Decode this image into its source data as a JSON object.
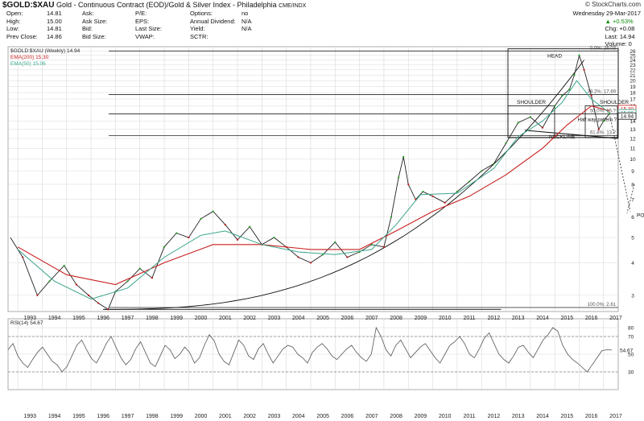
{
  "header": {
    "symbol": "$GOLD:$XAU",
    "description": "Gold - Continuous Contract (EOD)/Gold & Silver Index - Philadelphia",
    "exchange": "CME/INDX",
    "credit": "© StockCharts.com",
    "date": "Wednesday 29-Mar-2017",
    "change_pct": "▲ +0.53%",
    "chg": "Chg: +0.08",
    "last": "Last: 14.94",
    "volume": "Volume: 0"
  },
  "quote": {
    "col1": [
      "Open:",
      "High:",
      "Low:",
      "Prev Close:"
    ],
    "col1v": [
      "14.81",
      "15.00",
      "14.81",
      "14.86"
    ],
    "col2": [
      "Ask:",
      "Ask Size:",
      "Bid:",
      "Bid Size:"
    ],
    "col3": [
      "P/E:",
      "EPS:",
      "Last Size:",
      "VWAP:"
    ],
    "col4": [
      "Options:",
      "Annual Dividend:",
      "Yield:",
      "SCTR:"
    ],
    "col4v": [
      "no",
      "N/A",
      "N/A",
      ""
    ]
  },
  "legend": {
    "price": "$GOLD:$XAU (Weekly) 14.94",
    "ema200": "EMA(200) 15.30",
    "ema50": "EMA(50) 15.06",
    "rsi": "RSI(14) 54.67",
    "rsi_value": "54.67"
  },
  "colors": {
    "up": "#1a9a1a",
    "down": "#cc1111",
    "ema200": "#c81e1e",
    "ema50": "#3aa58c",
    "grid": "#d8d8d8",
    "rsi": "#555555"
  },
  "annotations": {
    "head": "HEAD",
    "shoulder_left": "SHOULDER",
    "shoulder_right": "SHOULDER",
    "neckline": "NECKLINE",
    "halfway": "Half way pattern ?",
    "po": "PO",
    "fib_0": "0.0%: 26.03",
    "fib_382": "38.2%: 17.69",
    "fib_50": "50.0%: 15.?",
    "fib_618": "61.8%: 13.?",
    "fib_100": "100.0%: 2.61",
    "price_flag_red": "15.30",
    "price_flag_green": "15.06",
    "price_flag_last": "14.94"
  },
  "chart_data": {
    "type": "line",
    "title": "$GOLD:$XAU Gold - Continuous Contract (EOD)/Gold & Silver Index - Philadelphia",
    "scale": "log",
    "x_ticks": [
      "1993",
      "1994",
      "1995",
      "1996",
      "1997",
      "1998",
      "1999",
      "2000",
      "2001",
      "2002",
      "2003",
      "2004",
      "2005",
      "2006",
      "2007",
      "2008",
      "2009",
      "2010",
      "2011",
      "2012",
      "2013",
      "2014",
      "2015",
      "2016",
      "2017"
    ],
    "y_ticks": [
      3,
      4,
      5,
      6,
      7,
      8,
      9,
      10,
      11,
      12,
      13,
      14,
      16,
      17,
      18,
      19,
      20,
      21,
      22,
      23,
      24,
      25,
      26
    ],
    "ylim": [
      2.6,
      27
    ],
    "series": [
      {
        "name": "$GOLD:$XAU (Weekly) 14.94",
        "x": [
          1992.7,
          1993.2,
          1993.8,
          1994.3,
          1994.9,
          1995.4,
          1995.9,
          1996.3,
          1996.7,
          1997.0,
          1997.5,
          1998.0,
          1998.5,
          1999.0,
          1999.5,
          2000.0,
          2000.5,
          2001.0,
          2001.5,
          2002.0,
          2002.5,
          2003.0,
          2003.5,
          2004.0,
          2004.5,
          2005.0,
          2005.5,
          2006.0,
          2006.5,
          2007.0,
          2007.5,
          2008.0,
          2008.3,
          2008.6,
          2008.8,
          2009.0,
          2009.3,
          2009.6,
          2010.0,
          2010.5,
          2011.0,
          2011.5,
          2012.0,
          2012.5,
          2013.0,
          2013.5,
          2014.0,
          2014.5,
          2015.0,
          2015.3,
          2015.6,
          2015.8,
          2016.0,
          2016.2,
          2016.5,
          2016.8,
          2017.0,
          2017.24
        ],
        "values": [
          5.0,
          4.2,
          3.0,
          3.4,
          3.9,
          3.3,
          3.0,
          2.8,
          2.65,
          3.1,
          3.4,
          3.8,
          3.5,
          4.6,
          5.2,
          5.0,
          5.9,
          6.3,
          5.6,
          4.9,
          5.5,
          4.7,
          5.0,
          4.6,
          4.2,
          4.0,
          4.3,
          4.8,
          4.2,
          4.4,
          4.7,
          4.6,
          6.0,
          8.5,
          10.2,
          8.0,
          7.0,
          7.5,
          7.2,
          6.8,
          7.5,
          8.2,
          9.0,
          9.6,
          11.5,
          13.8,
          14.5,
          13.2,
          16.0,
          17.5,
          18.5,
          21.0,
          25.0,
          22.0,
          17.5,
          13.0,
          14.0,
          14.94
        ]
      },
      {
        "name": "EMA(200) 15.30",
        "x": [
          1993.0,
          1995.0,
          1997.0,
          1999.0,
          2001.0,
          2003.0,
          2005.0,
          2007.0,
          2008.5,
          2010.0,
          2011.5,
          2013.0,
          2014.5,
          2015.5,
          2016.5,
          2017.24
        ],
        "values": [
          4.6,
          3.6,
          3.3,
          4.0,
          4.7,
          4.7,
          4.5,
          4.5,
          5.3,
          6.3,
          7.2,
          8.7,
          11.0,
          13.5,
          16.0,
          15.3
        ]
      },
      {
        "name": "EMA(50) 15.06",
        "x": [
          1993.0,
          1994.5,
          1996.0,
          1997.5,
          1999.0,
          2000.5,
          2001.5,
          2003.0,
          2004.5,
          2006.0,
          2007.5,
          2008.5,
          2009.5,
          2011.0,
          2012.5,
          2013.5,
          2014.5,
          2015.3,
          2015.9,
          2016.5,
          2017.24
        ],
        "values": [
          4.5,
          3.4,
          2.9,
          3.2,
          4.2,
          5.1,
          5.3,
          4.7,
          4.4,
          4.3,
          4.5,
          5.6,
          7.3,
          7.4,
          9.2,
          12.2,
          14.0,
          16.5,
          20.0,
          17.0,
          15.06
        ]
      }
    ],
    "rsi": {
      "name": "RSI(14) 54.67",
      "ylim": [
        10,
        90
      ],
      "y_ticks": [
        30,
        50,
        70,
        80
      ],
      "levels": [
        30,
        70
      ],
      "values": [
        55,
        62,
        48,
        40,
        35,
        44,
        52,
        58,
        50,
        42,
        38,
        30,
        36,
        48,
        60,
        66,
        55,
        45,
        40,
        50,
        62,
        70,
        58,
        46,
        38,
        44,
        56,
        64,
        52,
        40,
        36,
        48,
        60,
        55,
        45,
        50,
        58,
        52,
        40,
        46,
        60,
        72,
        65,
        50,
        42,
        38,
        52,
        66,
        60,
        48,
        44,
        56,
        62,
        50,
        40,
        48,
        56,
        60,
        58,
        50,
        46,
        40,
        52,
        58,
        62,
        56,
        48,
        44,
        50,
        56,
        60,
        52,
        46,
        42,
        50,
        80,
        70,
        55,
        48,
        60,
        66,
        56,
        46,
        52,
        58,
        62,
        54,
        46,
        40,
        50,
        60,
        64,
        70,
        62,
        50,
        46,
        56,
        68,
        74,
        62,
        50,
        44,
        40,
        48,
        58,
        60,
        52,
        46,
        56,
        66,
        72,
        80,
        76,
        60,
        50,
        44,
        40,
        35,
        30,
        38,
        46,
        54,
        55,
        54.67
      ]
    }
  }
}
